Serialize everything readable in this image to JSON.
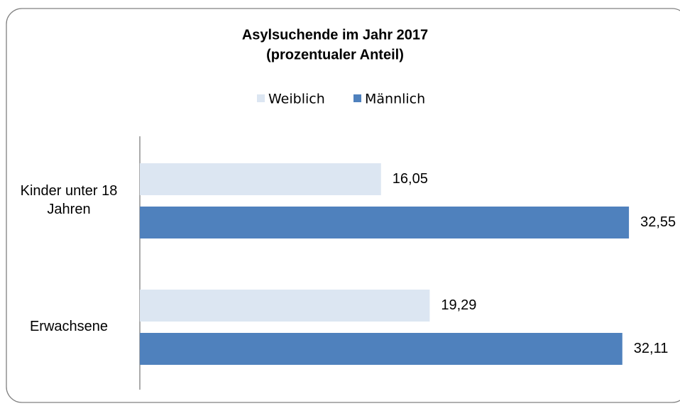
{
  "chart_data": {
    "type": "barh",
    "title": "Asylsuchende im Jahr 2017",
    "subtitle": "(prozentualer Anteil)",
    "categories": [
      "Kinder unter 18 Jahren",
      "Erwachsene"
    ],
    "series": [
      {
        "name": "Weiblich",
        "color": "#dce6f2",
        "values": [
          16.05,
          19.29
        ],
        "value_labels": [
          "16,05",
          "19,29"
        ]
      },
      {
        "name": "Männlich",
        "color": "#4f81bd",
        "values": [
          32.55,
          32.11
        ],
        "value_labels": [
          "32,55",
          "32,11"
        ]
      }
    ],
    "legend": "top"
  }
}
